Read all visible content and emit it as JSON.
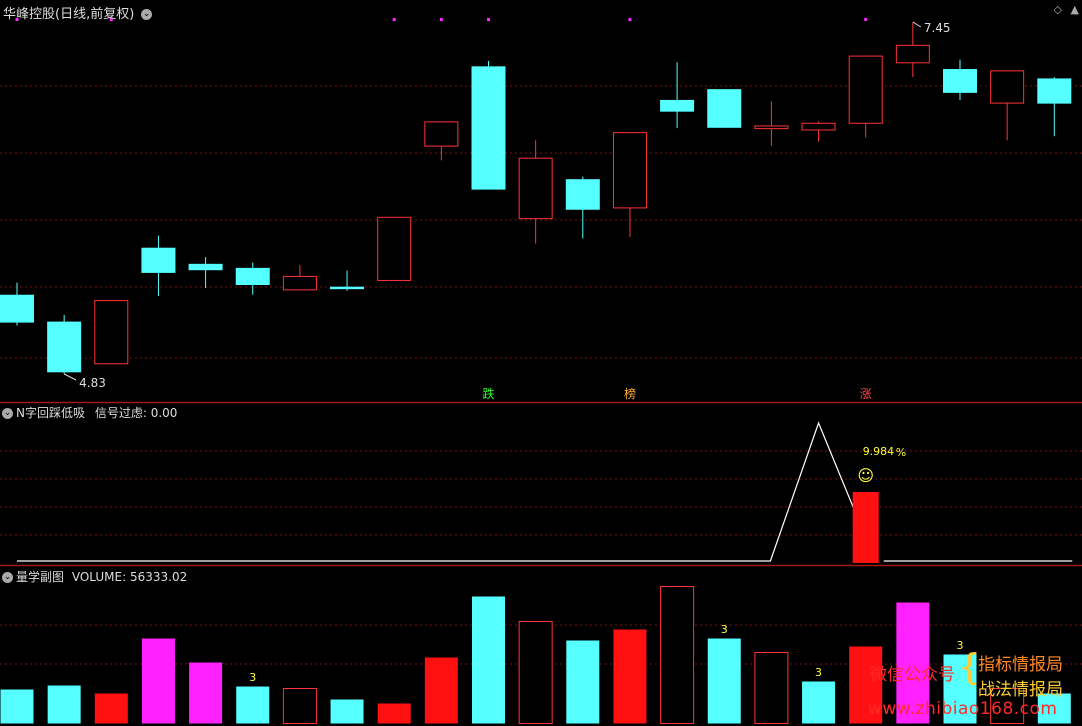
{
  "colors": {
    "up": "#ff3333",
    "down": "#55ffff",
    "magenta": "#ff22ff",
    "red_fill": "#ff1111",
    "grid": "#7a1010",
    "yellow": "#ffff33"
  },
  "main_panel": {
    "title": "华峰控股(日线,前复权)",
    "menu_icon": "chevron-down-icon",
    "settings_icon": "diamond-icon",
    "high_label": "7.45",
    "low_label": "4.83"
  },
  "chart_data": {
    "type": "candlestick",
    "candles": [
      {
        "o": 5.42,
        "c": 5.22,
        "h": 5.51,
        "l": 5.19
      },
      {
        "o": 5.22,
        "c": 4.85,
        "h": 5.27,
        "l": 4.83
      },
      {
        "o": 4.91,
        "c": 5.38,
        "h": 5.38,
        "l": 4.91
      },
      {
        "o": 5.77,
        "c": 5.59,
        "h": 5.86,
        "l": 5.41
      },
      {
        "o": 5.65,
        "c": 5.61,
        "h": 5.7,
        "l": 5.47
      },
      {
        "o": 5.62,
        "c": 5.5,
        "h": 5.66,
        "l": 5.42
      },
      {
        "o": 5.46,
        "c": 5.56,
        "h": 5.64,
        "l": 5.46
      },
      {
        "o": 5.48,
        "c": 5.47,
        "h": 5.6,
        "l": 5.45
      },
      {
        "o": 5.53,
        "c": 6.0,
        "h": 6.0,
        "l": 5.53
      },
      {
        "o": 6.53,
        "c": 6.71,
        "h": 6.71,
        "l": 6.42
      },
      {
        "o": 7.12,
        "c": 6.21,
        "h": 7.16,
        "l": 6.21
      },
      {
        "o": 5.99,
        "c": 6.44,
        "h": 6.57,
        "l": 5.8
      },
      {
        "o": 6.28,
        "c": 6.06,
        "h": 6.3,
        "l": 5.84
      },
      {
        "o": 6.07,
        "c": 6.63,
        "h": 6.63,
        "l": 5.85
      },
      {
        "o": 6.87,
        "c": 6.79,
        "h": 7.15,
        "l": 6.66
      },
      {
        "o": 6.95,
        "c": 6.67,
        "h": 6.95,
        "l": 6.67
      },
      {
        "o": 6.66,
        "c": 6.68,
        "h": 6.86,
        "l": 6.53
      },
      {
        "o": 6.65,
        "c": 6.7,
        "h": 6.71,
        "l": 6.56
      },
      {
        "o": 6.7,
        "c": 7.2,
        "h": 7.2,
        "l": 6.59
      },
      {
        "o": 7.15,
        "c": 7.28,
        "h": 7.45,
        "l": 7.04
      },
      {
        "o": 7.1,
        "c": 6.93,
        "h": 7.17,
        "l": 6.87
      },
      {
        "o": 6.85,
        "c": 7.09,
        "h": 7.09,
        "l": 6.57
      },
      {
        "o": 7.03,
        "c": 6.85,
        "h": 7.04,
        "l": 6.6
      }
    ],
    "markers": [
      {
        "i": 10,
        "text": "跌",
        "color": "#33ff33"
      },
      {
        "i": 13,
        "text": "榜",
        "color": "#ffaa33"
      },
      {
        "i": 18,
        "text": "涨",
        "color": "#ff4444"
      }
    ],
    "top_dots": [
      0,
      2,
      8,
      9,
      10,
      13,
      18
    ],
    "indicator": {
      "line": [
        0,
        0,
        0,
        0,
        0,
        0,
        0,
        0,
        0,
        0,
        0,
        0,
        0,
        0,
        0,
        0,
        0,
        1,
        0,
        0,
        0,
        0,
        0
      ],
      "bar_index": 18,
      "bar_value": 9.984
    },
    "volume": [
      {
        "v": 34,
        "style": "down"
      },
      {
        "v": 38,
        "style": "down"
      },
      {
        "v": 30,
        "style": "fillred"
      },
      {
        "v": 85,
        "style": "magenta"
      },
      {
        "v": 61,
        "style": "magenta"
      },
      {
        "v": 37,
        "style": "down",
        "label": "3"
      },
      {
        "v": 35,
        "style": "up"
      },
      {
        "v": 24,
        "style": "down"
      },
      {
        "v": 20,
        "style": "fillred"
      },
      {
        "v": 66,
        "style": "fillred"
      },
      {
        "v": 127,
        "style": "down"
      },
      {
        "v": 102,
        "style": "up"
      },
      {
        "v": 83,
        "style": "down"
      },
      {
        "v": 94,
        "style": "fillred"
      },
      {
        "v": 137,
        "style": "up"
      },
      {
        "v": 85,
        "style": "down",
        "label": "3"
      },
      {
        "v": 71,
        "style": "up"
      },
      {
        "v": 42,
        "style": "down",
        "label": "3"
      },
      {
        "v": 77,
        "style": "fillred"
      },
      {
        "v": 121,
        "style": "magenta"
      },
      {
        "v": 69,
        "style": "down",
        "label": "3"
      },
      {
        "v": 35,
        "style": "up"
      },
      {
        "v": 30,
        "style": "down"
      }
    ]
  },
  "indicator_panel": {
    "title": "N字回踩低吸",
    "filter_label": "信号过虑:",
    "filter_value": "0.00",
    "percent_value": "9.984",
    "percent_sign": "%",
    "smiley": "☺"
  },
  "volume_panel": {
    "title": "量学副图",
    "volume_label": "VOLUME:",
    "volume_value": "56333.02"
  },
  "watermark": {
    "left": "微信公众号",
    "brace": "{",
    "line1": "指标情报局",
    "line2": "战法情报局",
    "site": "www.zhibiao168.com"
  }
}
